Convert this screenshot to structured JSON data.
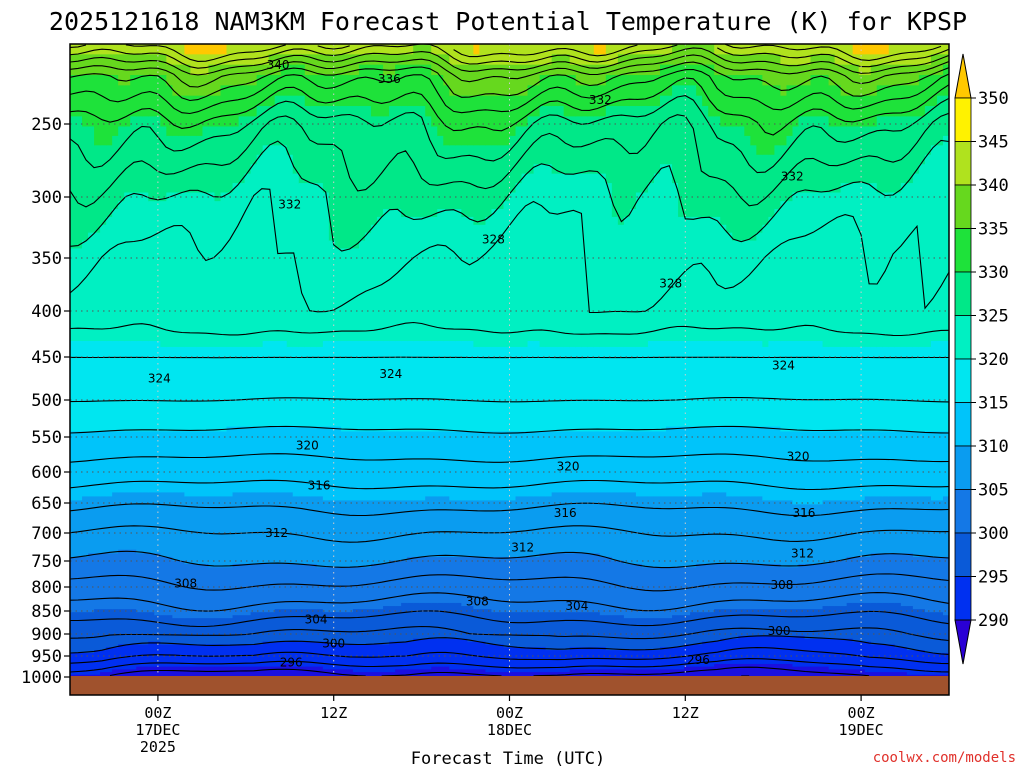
{
  "chart_data": {
    "type": "heatmap",
    "title": "2025121618 NAM3KM Forecast Potential Temperature (K) for KPSP",
    "xlabel": "Forecast Time (UTC)",
    "ylabel": "",
    "y_ticks": [
      250,
      300,
      350,
      400,
      450,
      500,
      550,
      600,
      650,
      700,
      750,
      800,
      850,
      900,
      950,
      1000
    ],
    "x_ticks": [
      {
        "line1": "00Z",
        "line2": "17DEC",
        "line3": "2025",
        "hours": 6
      },
      {
        "line1": "12Z",
        "line2": "",
        "line3": "",
        "hours": 18
      },
      {
        "line1": "00Z",
        "line2": "18DEC",
        "line3": "",
        "hours": 30
      },
      {
        "line1": "12Z",
        "line2": "",
        "line3": "",
        "hours": 42
      },
      {
        "line1": "00Z",
        "line2": "19DEC",
        "line3": "",
        "hours": 54
      }
    ],
    "x_range_hours": [
      0,
      60
    ],
    "y_range_hpa": [
      200,
      1000
    ],
    "colorbar": {
      "levels": [
        290,
        295,
        300,
        305,
        310,
        315,
        320,
        325,
        330,
        335,
        340,
        345,
        350
      ],
      "colors": [
        "#2a00d5",
        "#1a10e0",
        "#0030f0",
        "#0a5ad8",
        "#1478e6",
        "#0a9cf0",
        "#00c4fa",
        "#00e6f0",
        "#00f0c2",
        "#00e888",
        "#1ee23a",
        "#66d81e",
        "#b0e21e",
        "#fff200",
        "#ffc800"
      ]
    },
    "contour_labels": [
      {
        "v": "340",
        "t": 14.2,
        "p": 213
      },
      {
        "v": "336",
        "t": 21.8,
        "p": 222
      },
      {
        "v": "332",
        "t": 36.2,
        "p": 235
      },
      {
        "v": "332",
        "t": 15,
        "p": 306
      },
      {
        "v": "332",
        "t": 49.3,
        "p": 286
      },
      {
        "v": "328",
        "t": 28.9,
        "p": 335
      },
      {
        "v": "328",
        "t": 41.0,
        "p": 374
      },
      {
        "v": "324",
        "t": 6.1,
        "p": 475
      },
      {
        "v": "324",
        "t": 21.9,
        "p": 470
      },
      {
        "v": "324",
        "t": 48.7,
        "p": 460
      },
      {
        "v": "320",
        "t": 16.2,
        "p": 562
      },
      {
        "v": "320",
        "t": 34.0,
        "p": 592
      },
      {
        "v": "320",
        "t": 49.7,
        "p": 578
      },
      {
        "v": "316",
        "t": 17.0,
        "p": 622
      },
      {
        "v": "316",
        "t": 33.8,
        "p": 667
      },
      {
        "v": "316",
        "t": 50.1,
        "p": 667
      },
      {
        "v": "312",
        "t": 14.1,
        "p": 700
      },
      {
        "v": "312",
        "t": 30.9,
        "p": 726
      },
      {
        "v": "312",
        "t": 50.0,
        "p": 737
      },
      {
        "v": "308",
        "t": 7.9,
        "p": 793
      },
      {
        "v": "308",
        "t": 27.8,
        "p": 830
      },
      {
        "v": "308",
        "t": 48.6,
        "p": 796
      },
      {
        "v": "304",
        "t": 16.8,
        "p": 868
      },
      {
        "v": "304",
        "t": 34.6,
        "p": 840
      },
      {
        "v": "300",
        "t": 18.0,
        "p": 922
      },
      {
        "v": "300",
        "t": 48.4,
        "p": 894
      },
      {
        "v": "296",
        "t": 15.1,
        "p": 965
      },
      {
        "v": "296",
        "t": 42.9,
        "p": 960
      }
    ]
  },
  "footer": {
    "credit": "coolwx.com/models"
  },
  "colors": {
    "ground": "#a0522d",
    "grid": "#555555"
  }
}
